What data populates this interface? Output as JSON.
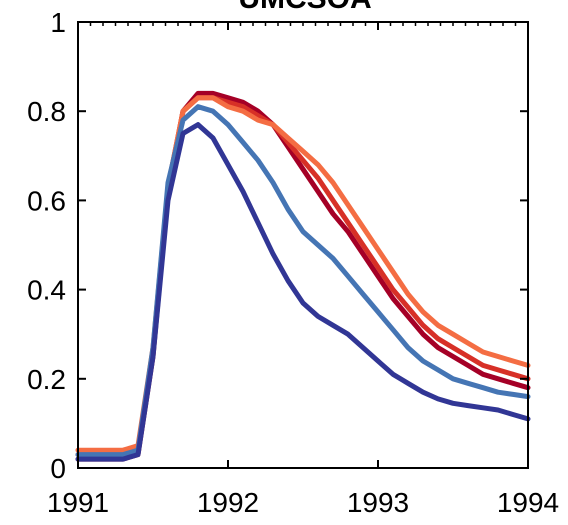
{
  "chart_data": {
    "type": "line",
    "title": "UMCSOA",
    "xlabel": "",
    "ylabel": "",
    "xlim": [
      1991,
      1994
    ],
    "ylim": [
      0,
      1
    ],
    "grid": false,
    "legend": "none",
    "x_ticks": [
      "1991",
      "1992",
      "1993",
      "1994"
    ],
    "y_ticks": [
      "0",
      "0.2",
      "0.4",
      "0.6",
      "0.8",
      "1"
    ],
    "series": [
      {
        "color": "#a50026",
        "x": [
          1991.0,
          1991.1,
          1991.2,
          1991.3,
          1991.4,
          1991.5,
          1991.6,
          1991.7,
          1991.8,
          1991.9,
          1992.0,
          1992.1,
          1992.2,
          1992.3,
          1992.4,
          1992.5,
          1992.6,
          1992.7,
          1992.8,
          1992.9,
          1993.0,
          1993.1,
          1993.2,
          1993.3,
          1993.4,
          1993.5,
          1993.6,
          1993.7,
          1993.8,
          1993.9,
          1994.0
        ],
        "values": [
          0.02,
          0.02,
          0.02,
          0.02,
          0.03,
          0.25,
          0.62,
          0.8,
          0.84,
          0.84,
          0.83,
          0.82,
          0.8,
          0.77,
          0.72,
          0.67,
          0.62,
          0.57,
          0.53,
          0.48,
          0.43,
          0.38,
          0.34,
          0.3,
          0.27,
          0.25,
          0.23,
          0.21,
          0.2,
          0.19,
          0.18
        ]
      },
      {
        "color": "#d73027",
        "x": [
          1991.0,
          1991.1,
          1991.2,
          1991.3,
          1991.4,
          1991.5,
          1991.6,
          1991.7,
          1991.8,
          1991.9,
          1992.0,
          1992.1,
          1992.2,
          1992.3,
          1992.4,
          1992.5,
          1992.6,
          1992.7,
          1992.8,
          1992.9,
          1993.0,
          1993.1,
          1993.2,
          1993.3,
          1993.4,
          1993.5,
          1993.6,
          1993.7,
          1993.8,
          1993.9,
          1994.0
        ],
        "values": [
          0.03,
          0.03,
          0.03,
          0.03,
          0.04,
          0.26,
          0.63,
          0.8,
          0.83,
          0.83,
          0.82,
          0.81,
          0.79,
          0.77,
          0.73,
          0.69,
          0.65,
          0.6,
          0.55,
          0.5,
          0.45,
          0.4,
          0.36,
          0.32,
          0.29,
          0.27,
          0.25,
          0.23,
          0.22,
          0.21,
          0.2
        ]
      },
      {
        "color": "#f46d43",
        "x": [
          1991.0,
          1991.1,
          1991.2,
          1991.3,
          1991.4,
          1991.5,
          1991.6,
          1991.7,
          1991.8,
          1991.9,
          1992.0,
          1992.1,
          1992.2,
          1992.3,
          1992.4,
          1992.5,
          1992.6,
          1992.7,
          1992.8,
          1992.9,
          1993.0,
          1993.1,
          1993.2,
          1993.3,
          1993.4,
          1993.5,
          1993.6,
          1993.7,
          1993.8,
          1993.9,
          1994.0
        ],
        "values": [
          0.04,
          0.04,
          0.04,
          0.04,
          0.05,
          0.27,
          0.63,
          0.8,
          0.83,
          0.83,
          0.81,
          0.8,
          0.78,
          0.77,
          0.74,
          0.71,
          0.68,
          0.64,
          0.59,
          0.54,
          0.49,
          0.44,
          0.39,
          0.35,
          0.32,
          0.3,
          0.28,
          0.26,
          0.25,
          0.24,
          0.23
        ]
      },
      {
        "color": "#4575b4",
        "x": [
          1991.0,
          1991.1,
          1991.2,
          1991.3,
          1991.4,
          1991.5,
          1991.6,
          1991.7,
          1991.8,
          1991.9,
          1992.0,
          1992.1,
          1992.2,
          1992.3,
          1992.4,
          1992.5,
          1992.6,
          1992.7,
          1992.8,
          1992.9,
          1993.0,
          1993.1,
          1993.2,
          1993.3,
          1993.4,
          1993.5,
          1993.6,
          1993.7,
          1993.8,
          1993.9,
          1994.0
        ],
        "values": [
          0.03,
          0.03,
          0.03,
          0.03,
          0.04,
          0.27,
          0.64,
          0.78,
          0.81,
          0.8,
          0.77,
          0.73,
          0.69,
          0.64,
          0.58,
          0.53,
          0.5,
          0.47,
          0.43,
          0.39,
          0.35,
          0.31,
          0.27,
          0.24,
          0.22,
          0.2,
          0.19,
          0.18,
          0.17,
          0.165,
          0.16
        ]
      },
      {
        "color": "#313695",
        "x": [
          1991.0,
          1991.1,
          1991.2,
          1991.3,
          1991.4,
          1991.5,
          1991.6,
          1991.7,
          1991.8,
          1991.9,
          1992.0,
          1992.1,
          1992.2,
          1992.3,
          1992.4,
          1992.5,
          1992.6,
          1992.7,
          1992.8,
          1992.9,
          1993.0,
          1993.1,
          1993.2,
          1993.3,
          1993.4,
          1993.5,
          1993.6,
          1993.7,
          1993.8,
          1993.9,
          1994.0
        ],
        "values": [
          0.02,
          0.02,
          0.02,
          0.02,
          0.03,
          0.25,
          0.6,
          0.75,
          0.77,
          0.74,
          0.68,
          0.62,
          0.55,
          0.48,
          0.42,
          0.37,
          0.34,
          0.32,
          0.3,
          0.27,
          0.24,
          0.21,
          0.19,
          0.17,
          0.155,
          0.145,
          0.14,
          0.135,
          0.13,
          0.12,
          0.11
        ]
      }
    ]
  }
}
